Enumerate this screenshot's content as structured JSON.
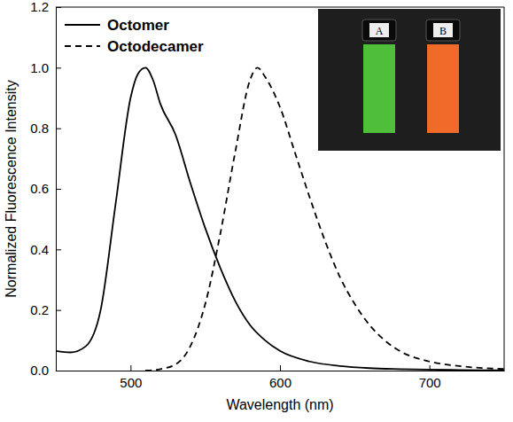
{
  "chart_data": {
    "type": "line",
    "x_label": "Wavelength (nm)",
    "y_label": "Normalized Fluorescence Intensity",
    "xlim": [
      450,
      750
    ],
    "xticks": [
      500,
      600,
      700
    ],
    "ylim": [
      0,
      1.2
    ],
    "yticks": [
      {
        "value": 0,
        "label": "0.0"
      },
      0.2,
      0.4,
      0.6,
      0.8,
      {
        "value": 1,
        "label": "1.0"
      },
      1.2
    ],
    "legend": "upper left",
    "annotations": [
      "A",
      "B"
    ],
    "series": [
      {
        "name": "Octomer",
        "color": "#000000",
        "line_style": "solid",
        "x": [
          450,
          460,
          470,
          480,
          490,
          500,
          505,
          510,
          515,
          520,
          530,
          540,
          550,
          560,
          570,
          580,
          590,
          600,
          620,
          640,
          660,
          680,
          700,
          720,
          750
        ],
        "values": [
          0.065,
          0.06,
          0.08,
          0.2,
          0.55,
          0.9,
          0.98,
          1.0,
          0.96,
          0.88,
          0.78,
          0.62,
          0.47,
          0.34,
          0.23,
          0.15,
          0.1,
          0.065,
          0.03,
          0.015,
          0.008,
          0.005,
          0.003,
          0.002,
          0.001
        ]
      },
      {
        "name": "Octodecamer",
        "color": "#000000",
        "line_style": "dashed",
        "x": [
          510,
          520,
          530,
          540,
          550,
          560,
          570,
          580,
          585,
          590,
          600,
          610,
          620,
          630,
          640,
          650,
          660,
          670,
          680,
          700,
          720,
          750
        ],
        "values": [
          0,
          0.005,
          0.02,
          0.08,
          0.22,
          0.45,
          0.72,
          0.96,
          1.0,
          0.97,
          0.87,
          0.72,
          0.57,
          0.43,
          0.31,
          0.22,
          0.15,
          0.1,
          0.065,
          0.03,
          0.015,
          0.005
        ]
      }
    ]
  }
}
